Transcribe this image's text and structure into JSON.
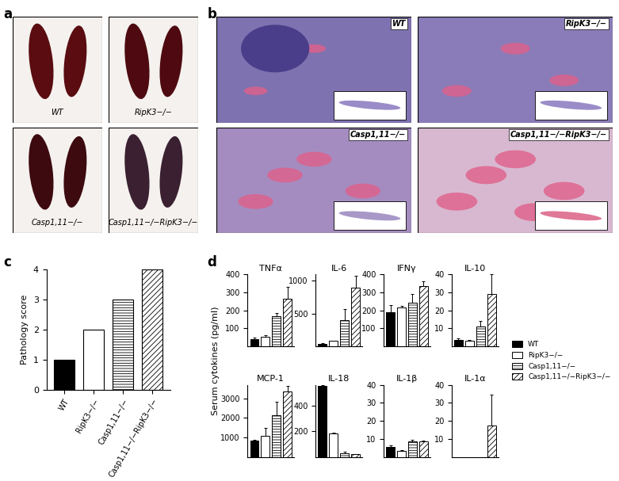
{
  "panels": [
    {
      "label": "a",
      "type": "photo",
      "captions": [
        "WT",
        "RipK3−/−",
        "Casp1,11−/−",
        "Casp1,11−/−RipK3−/−"
      ]
    },
    {
      "label": "b",
      "type": "histology",
      "captions": [
        "WT",
        "RipK3−/−",
        "Casp1,11−/−",
        "Casp1,11−/−RipK3−/−"
      ]
    }
  ],
  "chart_data": [
    {
      "type": "bar",
      "panel": "c",
      "ylabel": "Pathology score",
      "categories": [
        "WT",
        "RipK3−/−",
        "Casp1,11−/−",
        "Casp1,11−/−RipK3−/−"
      ],
      "values": [
        1,
        2,
        3,
        4
      ],
      "colors": [
        "#000000",
        "#ffffff",
        "#ffffff",
        "#ffffff"
      ],
      "ylim": [
        0,
        4
      ],
      "yticks": [
        0,
        1,
        2,
        3,
        4
      ]
    },
    {
      "type": "bar",
      "panel": "d",
      "ylabel": "Serum cytokines (pg/ml)",
      "legend": "center right",
      "series": [
        {
          "name": "WT",
          "color": "#000000"
        },
        {
          "name": "RipK3−/−",
          "color": "#ffffff"
        },
        {
          "name": "Casp1,11−/−",
          "color": "#ffffff"
        },
        {
          "name": "Casp1,11−/−RipK3−/−",
          "color": "#ffffff"
        }
      ],
      "charts": [
        {
          "title": "TNFα",
          "values": [
            40,
            55,
            165,
            265
          ],
          "errors": [
            10,
            5,
            20,
            65
          ],
          "ylim": [
            0,
            400
          ],
          "yticks": [
            100,
            200,
            300,
            400
          ]
        },
        {
          "title": "IL-6",
          "values": [
            40,
            80,
            400,
            890
          ],
          "errors": [
            10,
            10,
            170,
            180
          ],
          "ylim": [
            0,
            1100
          ],
          "yticks": [
            500,
            1000
          ]
        },
        {
          "title": "IFNγ",
          "values": [
            190,
            215,
            240,
            335
          ],
          "errors": [
            40,
            10,
            50,
            25
          ],
          "ylim": [
            0,
            400
          ],
          "yticks": [
            100,
            200,
            300,
            400
          ]
        },
        {
          "title": "IL-10",
          "values": [
            3.5,
            3,
            11,
            29
          ],
          "errors": [
            1,
            0.5,
            3,
            11
          ],
          "ylim": [
            0,
            40
          ],
          "yticks": [
            10,
            20,
            30,
            40
          ]
        },
        {
          "title": "MCP-1",
          "values": [
            850,
            1100,
            2150,
            3350
          ],
          "errors": [
            50,
            400,
            700,
            300
          ],
          "ylim": [
            0,
            3700
          ],
          "yticks": [
            1000,
            2000,
            3000
          ]
        },
        {
          "title": "IL-18",
          "values": [
            550,
            185,
            30,
            20
          ],
          "errors": [
            10,
            5,
            10,
            5
          ],
          "ylim": [
            0,
            560
          ],
          "yticks": [
            200,
            400
          ]
        },
        {
          "title": "IL-1β",
          "values": [
            5.5,
            3.5,
            8.5,
            8.5
          ],
          "errors": [
            1,
            0.5,
            1,
            0.5
          ],
          "ylim": [
            0,
            40
          ],
          "yticks": [
            10,
            20,
            30,
            40
          ]
        },
        {
          "title": "IL-1α",
          "values": [
            0,
            0,
            0,
            17.5
          ],
          "errors": [
            0,
            0,
            0,
            17
          ],
          "ylim": [
            0,
            40
          ],
          "yticks": [
            10,
            20,
            30,
            40
          ]
        }
      ]
    }
  ]
}
